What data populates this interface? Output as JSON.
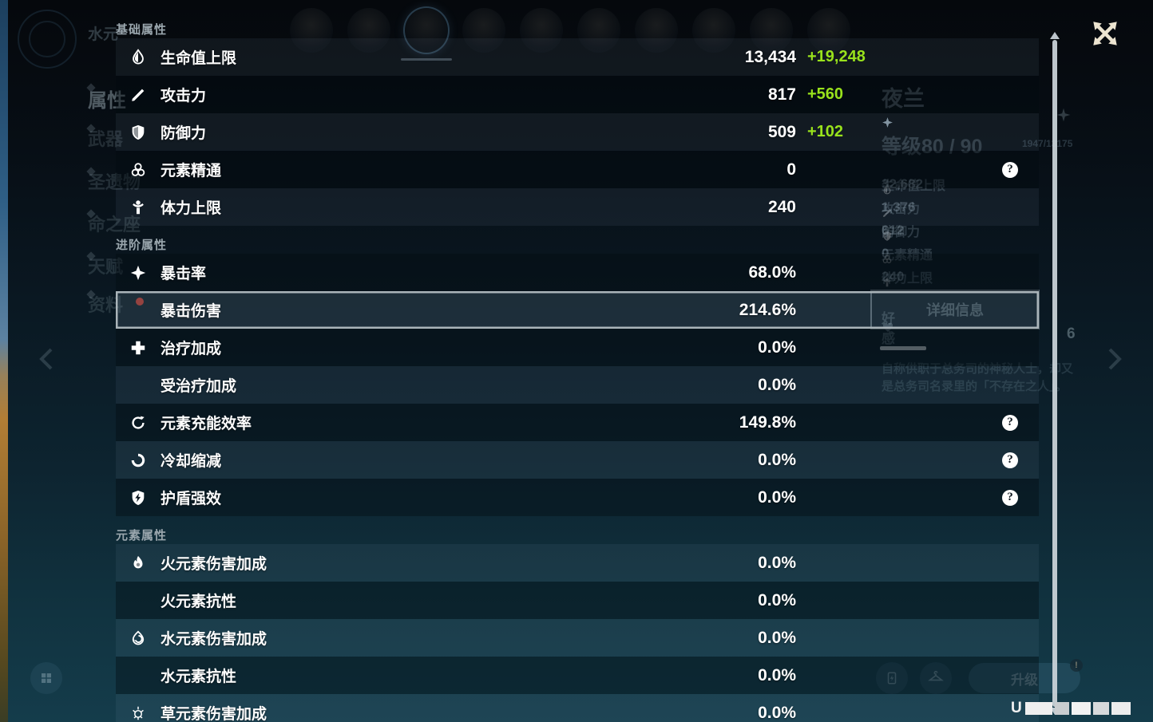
{
  "overlay": {
    "help_glyph": "?",
    "sections": [
      {
        "title": "基础属性",
        "rows": [
          {
            "icon": "hp-icon",
            "label": "生命值上限",
            "value": "13,434",
            "bonus": "+19,248"
          },
          {
            "icon": "atk-icon",
            "label": "攻击力",
            "value": "817",
            "bonus": "+560"
          },
          {
            "icon": "def-icon",
            "label": "防御力",
            "value": "509",
            "bonus": "+102"
          },
          {
            "icon": "elemental-mastery-icon",
            "label": "元素精通",
            "value": "0",
            "help": true
          },
          {
            "icon": "stamina-icon",
            "label": "体力上限",
            "value": "240"
          }
        ]
      },
      {
        "title": "进阶属性",
        "rows": [
          {
            "icon": "crit-rate-icon",
            "label": "暴击率",
            "value": "68.0%"
          },
          {
            "icon": null,
            "label": "暴击伤害",
            "value": "214.6%",
            "selected": true
          },
          {
            "icon": "healing-bonus-icon",
            "label": "治疗加成",
            "value": "0.0%"
          },
          {
            "icon": null,
            "label": "受治疗加成",
            "value": "0.0%"
          },
          {
            "icon": "energy-recharge-icon",
            "label": "元素充能效率",
            "value": "149.8%",
            "help": true
          },
          {
            "icon": "cooldown-icon",
            "label": "冷却缩减",
            "value": "0.0%",
            "help": true
          },
          {
            "icon": "shield-strength-icon",
            "label": "护盾强效",
            "value": "0.0%",
            "help": true
          }
        ]
      },
      {
        "title": "元素属性",
        "rows": [
          {
            "icon": "pyro-icon",
            "label": "火元素伤害加成",
            "value": "0.0%"
          },
          {
            "icon": null,
            "label": "火元素抗性",
            "value": "0.0%"
          },
          {
            "icon": "hydro-icon",
            "label": "水元素伤害加成",
            "value": "0.0%"
          },
          {
            "icon": null,
            "label": "水元素抗性",
            "value": "0.0%"
          },
          {
            "icon": "dendro-icon",
            "label": "草元素伤害加成",
            "value": "0.0%"
          }
        ]
      }
    ]
  },
  "background": {
    "element_title": "水元",
    "nav_items": [
      {
        "label": "属性",
        "selected": true
      },
      {
        "label": "武器"
      },
      {
        "label": "圣遗物"
      },
      {
        "label": "命之座"
      },
      {
        "label": "天赋"
      },
      {
        "label": "资料",
        "badge": true
      }
    ],
    "avatar_count": 10,
    "selected_avatar_index": 2,
    "character": {
      "name": "夜兰",
      "star_count": 6,
      "level_label": "等级80 / 90",
      "hp_text": "1947/13175",
      "stats": [
        {
          "icon": "hp-icon",
          "label": "生命值上限",
          "value": "32,682"
        },
        {
          "icon": "atk-icon",
          "label": "攻击力",
          "value": "1,376"
        },
        {
          "icon": "def-icon",
          "label": "防御力",
          "value": "612"
        },
        {
          "icon": "elemental-mastery-icon",
          "label": "元素精通",
          "value": "0"
        },
        {
          "icon": "stamina-icon",
          "label": "体力上限",
          "value": "240"
        }
      ],
      "details_button": "详细信息",
      "friendship_label": "好感",
      "friendship_value": "6",
      "description": [
        "自称供职于总务司的神秘人士，却又",
        "是总务司名录里的「不存在之人」。"
      ]
    },
    "footer": {
      "upgrade_label": "升级",
      "uid_prefix": "U"
    }
  },
  "colors": {
    "bonus_green": "#99e21c",
    "selection_border": "#aab4b9"
  }
}
